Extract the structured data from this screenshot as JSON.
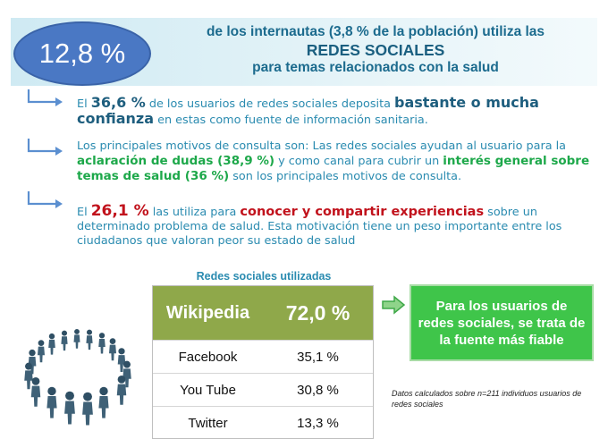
{
  "header": {
    "percent": "12,8 %",
    "line1": "de los internautas (3,8 % de la población) utiliza las",
    "line2": "REDES SOCIALES",
    "line3": "para temas relacionados con la salud"
  },
  "points": [
    {
      "parts": [
        "El ",
        "36,6 %",
        " de los usuarios de redes sociales deposita ",
        "bastante o mucha confianza",
        " en estas como fuente de información sanitaria."
      ]
    },
    {
      "parts": [
        "Los principales motivos de consulta son:  Las redes sociales ayudan al usuario para  la ",
        "aclaración de dudas (38,9 %)",
        " y como canal para cubrir un ",
        "interés general sobre temas de salud (36 %)",
        " son los principales motivos de consulta."
      ]
    },
    {
      "parts": [
        "El ",
        "26,1 %",
        " las utiliza para ",
        "conocer y compartir experiencias",
        " sobre un determinado problema de salud. Esta motivación tiene un peso importante entre los ciudadanos que valoran peor su estado de salud"
      ]
    }
  ],
  "table": {
    "title": "Redes sociales utilizadas",
    "rows": [
      {
        "name": "Wikipedia",
        "value": "72,0 %"
      },
      {
        "name": "Facebook",
        "value": "35,1 %"
      },
      {
        "name": "You Tube",
        "value": "30,8 %"
      },
      {
        "name": "Twitter",
        "value": "13,3 %"
      }
    ]
  },
  "callout": "Para los usuarios de redes sociales, se trata de la fuente más fiable",
  "note": "Datos calculados sobre n=211 individuos usuarios de redes sociales",
  "colors": {
    "accent": "#2a8bb0",
    "green": "#1da84a",
    "red": "#c1121c",
    "oval": "#4a78c4",
    "table_header": "#8fa84a",
    "callout": "#3fc54a"
  },
  "icons": {
    "bullet": "corner-arrow-icon",
    "callout_arrow": "right-arrow-icon",
    "illustration": "people-circle-illustration"
  }
}
